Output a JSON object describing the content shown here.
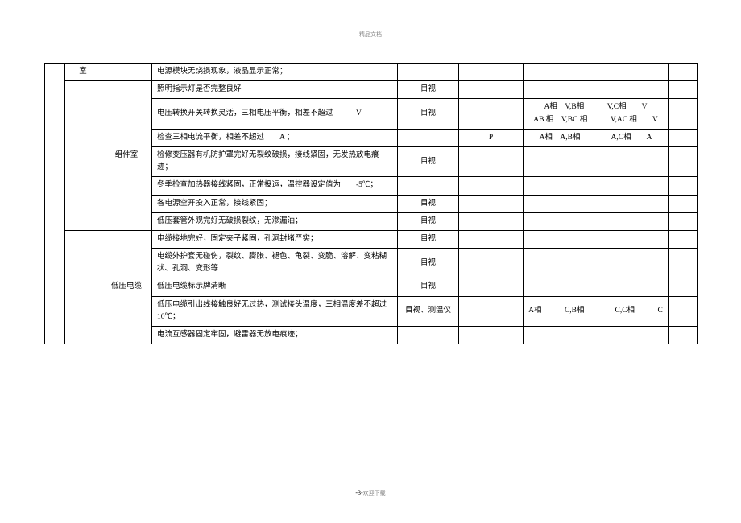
{
  "header": "精品文档",
  "footer": {
    "page": "-3-",
    "suffix": "欢迎下载"
  },
  "columns": {
    "c1_width": 25,
    "c2_width": 45,
    "c3_width": 63,
    "c4_width": 305,
    "c5_width": 76,
    "c6_width": 80,
    "c7_width": 180,
    "c8_width": 36
  },
  "rows": [
    {
      "cat1_rowspan": 13,
      "cat1": "",
      "cat2_rowspan": 1,
      "cat2": "室",
      "cat3_rowspan": 1,
      "cat3": "",
      "desc": "电源模块无烧损现象，液晶显示正常；",
      "method": "",
      "val1": "",
      "val2": "",
      "val3": ""
    },
    {
      "cat2_rowspan": 7,
      "cat2": "",
      "cat3_rowspan": 7,
      "cat3": "组件室",
      "desc": "照明指示灯是否完整良好",
      "method": "目视",
      "val1": "",
      "val2": "",
      "val3": ""
    },
    {
      "desc": "电压转换开关转换灵活，三相电压平衡，相差不超过　　　V",
      "method": "目视",
      "val1": "",
      "val2": "A相　V,B相　　　V,C相　　V\nAB 相　V,BC 相　　　V,AC 相　　V",
      "val3": ""
    },
    {
      "desc": "检查三相电流平衡，相差不超过　　A ；",
      "method": "",
      "val1": "P",
      "val2": "A相　A,B相　　　　A,C相　　A",
      "val3": ""
    },
    {
      "desc": "检修变压器有机防护罩完好无裂纹破损，接线紧固，无发热放电痕迹；",
      "method": "目视",
      "val1": "",
      "val2": "",
      "val3": ""
    },
    {
      "desc": "冬季检查加热器接线紧固，正常投运，温控器设定值为　　-5℃；",
      "method": "",
      "val1": "",
      "val2": "",
      "val3": ""
    },
    {
      "desc": "各电源空开投入正常，接线紧固；",
      "method": "目视",
      "val1": "",
      "val2": "",
      "val3": ""
    },
    {
      "desc": "低压套管外观完好无破损裂纹，无渗漏油；",
      "method": "目视",
      "val1": "",
      "val2": "",
      "val3": ""
    },
    {
      "cat2_rowspan": 5,
      "cat2": "",
      "cat3_rowspan": 5,
      "cat3": "低压电缆",
      "desc": "电缆接地完好，固定夹子紧固，孔洞封堵严实；",
      "method": "目视",
      "val1": "",
      "val2": "",
      "val3": ""
    },
    {
      "desc": "电缆外护套无碰伤，裂纹、膨胀、褪色、龟裂、变脆、溶解、变粘糊状、孔洞、变形等",
      "method": "目视",
      "val1": "",
      "val2": "",
      "val3": ""
    },
    {
      "desc": "低压电缆标示牌清晰",
      "method": "目视",
      "val1": "",
      "val2": "",
      "val3": ""
    },
    {
      "desc": "低压电缆引出线接触良好无过热，测试接头温度，三相温度差不超过10℃；",
      "method": "目视、测温仪",
      "val1": "",
      "val2": "A相　　　C,B相　　　　C,C相　　　C",
      "val3": ""
    },
    {
      "desc": "电流互感器固定牢固，避雷器无放电痕迹；",
      "method": "",
      "val1": "",
      "val2": "",
      "val3": ""
    }
  ]
}
